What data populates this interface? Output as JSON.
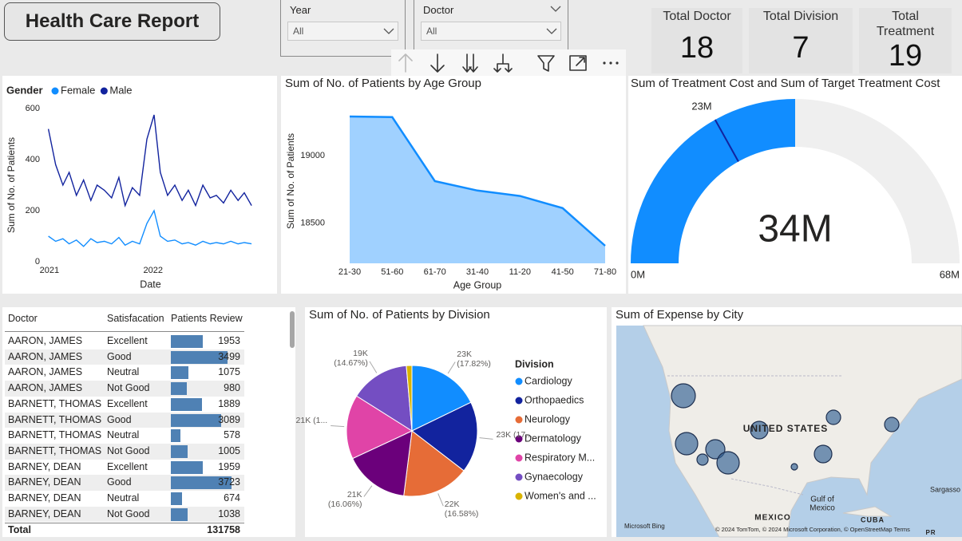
{
  "header": {
    "title": "Health Care Report"
  },
  "filters": [
    {
      "label": "Year",
      "value": "All"
    },
    {
      "label": "Doctor",
      "value": "All"
    }
  ],
  "cards": [
    {
      "label": "Total Doctor",
      "value": 18
    },
    {
      "label": "Total Division",
      "value": 7
    },
    {
      "label": "Total Treatment",
      "value": 19
    }
  ],
  "chart_data": [
    {
      "type": "line",
      "legend_title": "Gender",
      "x_label": "Date",
      "y_label": "Sum of No. of Patients",
      "x": [
        2020.99,
        2021.06,
        2021.13,
        2021.19,
        2021.26,
        2021.33,
        2021.4,
        2021.46,
        2021.53,
        2021.6,
        2021.67,
        2021.73,
        2021.8,
        2021.87,
        2021.94,
        2022.01,
        2022.07,
        2022.14,
        2022.21,
        2022.28,
        2022.34,
        2022.41,
        2022.48,
        2022.55,
        2022.61,
        2022.68,
        2022.75,
        2022.82,
        2022.88,
        2022.95
      ],
      "xlim": [
        2020.97,
        2022.98
      ],
      "xticks": [
        2021,
        2022
      ],
      "ylim": [
        0,
        600
      ],
      "yticks": [
        0,
        200,
        400,
        600
      ],
      "grid": false,
      "series": [
        {
          "name": "Female",
          "color": "#118dff",
          "values": [
            100,
            80,
            90,
            70,
            85,
            60,
            90,
            75,
            80,
            70,
            95,
            65,
            80,
            70,
            150,
            200,
            100,
            80,
            85,
            70,
            75,
            65,
            80,
            70,
            75,
            70,
            80,
            70,
            75,
            70
          ]
        },
        {
          "name": "Male",
          "color": "#12239e",
          "values": [
            520,
            380,
            300,
            350,
            260,
            320,
            240,
            300,
            280,
            250,
            330,
            220,
            290,
            260,
            480,
            575,
            350,
            260,
            300,
            240,
            280,
            220,
            300,
            250,
            260,
            230,
            280,
            240,
            270,
            220
          ]
        }
      ]
    },
    {
      "type": "area",
      "title": "Sum of No. of Patients by Age Group",
      "x_label": "Age Group",
      "y_label": "Sum of No. of Patients",
      "categories": [
        "21-30",
        "51-60",
        "61-70",
        "31-40",
        "11-20",
        "41-50",
        "71-80"
      ],
      "values": [
        19290,
        19285,
        18810,
        18740,
        18700,
        18610,
        18330
      ],
      "color": "#118dff",
      "ylim": [
        18200,
        19420
      ],
      "yticks": [
        18500,
        19000
      ],
      "grid": false
    },
    {
      "type": "gauge",
      "title": "Sum of Treatment Cost and Sum of Target Treatment Cost",
      "values": [
        34000000
      ],
      "value_labels": [
        "34M"
      ],
      "target": {
        "value": 23000000,
        "label": "23M"
      },
      "ylim": [
        0,
        68000000
      ],
      "yticks": [
        {
          "value": 0,
          "label": "0M"
        },
        {
          "value": 68000000,
          "label": "68M"
        }
      ],
      "color": "#118dff",
      "target_color": "#12239e"
    },
    {
      "type": "pie",
      "title": "Sum of No. of Patients by Division",
      "legend_title": "Division",
      "categories": [
        "Cardiology",
        "Orthopaedics",
        "Neurology",
        "Dermatology",
        "Respiratory M...",
        "Gynaecology",
        "Women's and ..."
      ],
      "values": [
        23166,
        22880,
        21554,
        20878,
        20670,
        19071,
        1781
      ],
      "value_labels": [
        "23K (17.82%)",
        "23K (17...",
        "22K (16.58%)",
        "21K (16.06%)",
        "21K (1...",
        "19K (14.67%)",
        null
      ],
      "colors": [
        "#118dff",
        "#12239e",
        "#e66c37",
        "#6b007b",
        "#e044a7",
        "#744ec2",
        "#d9b300"
      ]
    }
  ],
  "table": {
    "columns": [
      "Doctor",
      "Satisfacation",
      "Patients Review"
    ],
    "rows": [
      [
        "AARON, JAMES",
        "Excellent",
        1953
      ],
      [
        "AARON, JAMES",
        "Good",
        3499
      ],
      [
        "AARON, JAMES",
        "Neutral",
        1075
      ],
      [
        "AARON, JAMES",
        "Not Good",
        980
      ],
      [
        "BARNETT, THOMAS",
        "Excellent",
        1889
      ],
      [
        "BARNETT, THOMAS",
        "Good",
        3089
      ],
      [
        "BARNETT, THOMAS",
        "Neutral",
        578
      ],
      [
        "BARNETT, THOMAS",
        "Not Good",
        1005
      ],
      [
        "BARNEY, DEAN",
        "Excellent",
        1959
      ],
      [
        "BARNEY, DEAN",
        "Good",
        3723
      ],
      [
        "BARNEY, DEAN",
        "Neutral",
        674
      ],
      [
        "BARNEY, DEAN",
        "Not Good",
        1038
      ]
    ],
    "total": {
      "label": "Total",
      "value": 131758
    }
  },
  "map": {
    "title": "Sum of Expense by City",
    "labels": [
      "UNITED STATES",
      "MEXICO",
      "Gulf of",
      "Mexico",
      "CUBA",
      "Sargasso",
      "PR"
    ],
    "logo": "Microsoft Bing",
    "attribution": "© 2024 TomTom, © 2024 Microsoft Corporation, © OpenStreetMap  Terms"
  }
}
